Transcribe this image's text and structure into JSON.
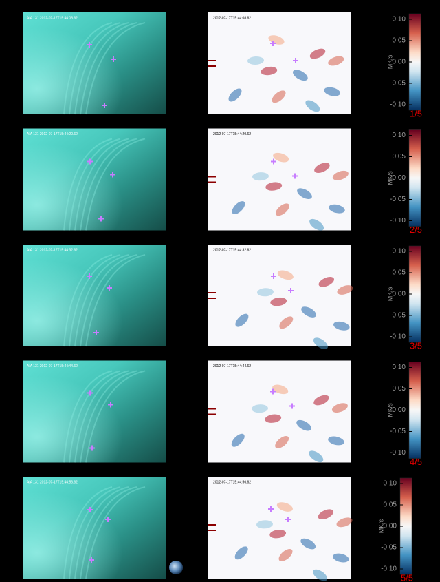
{
  "panels": [
    {
      "aia_label": "AIA 131 2012-07-17T15:44:08.62",
      "map_label": "2012-07-17T15:44:08.62",
      "frame": "1/5"
    },
    {
      "aia_label": "AIA 131 2012-07-17T15:44:20.62",
      "map_label": "2012-07-17T15:44:20.62",
      "frame": "2/5"
    },
    {
      "aia_label": "AIA 131 2012-07-17T15:44:32.62",
      "map_label": "2012-07-17T15:44:32.62",
      "frame": "3/5"
    },
    {
      "aia_label": "AIA 131 2012-07-17T15:44:44.62",
      "map_label": "2012-07-17T15:44:44.62",
      "frame": "4/5"
    },
    {
      "aia_label": "AIA 131 2012-07-17T15:44:56.62",
      "map_label": "2012-07-17T15:44:56.62",
      "frame": "5/5"
    }
  ],
  "colorbar": {
    "ticks": [
      "0.10",
      "0.05",
      "0.00",
      "-0.05",
      "-0.10"
    ],
    "unit": "MK/s"
  }
}
